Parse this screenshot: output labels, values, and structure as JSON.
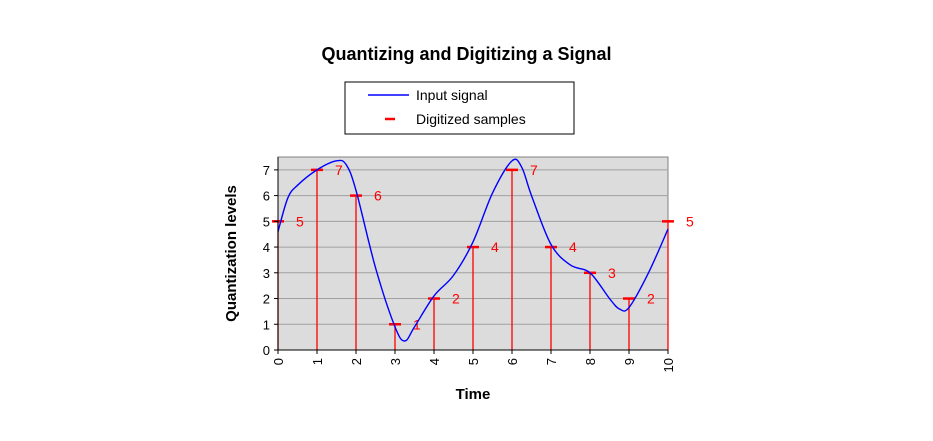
{
  "chart_data": {
    "type": "line",
    "title": "Quantizing and Digitizing a Signal",
    "xlabel": "Time",
    "ylabel": "Quantization levels",
    "xlim": [
      0,
      10
    ],
    "ylim": [
      0,
      7.5
    ],
    "x_ticks": [
      "0",
      "1",
      "2",
      "3",
      "4",
      "5",
      "6",
      "7",
      "8",
      "9",
      "10"
    ],
    "y_ticks": [
      "0",
      "1",
      "2",
      "3",
      "4",
      "5",
      "6",
      "7"
    ],
    "grid": true,
    "legend": {
      "position": "top"
    },
    "series": [
      {
        "name": "Input signal",
        "kind": "line",
        "color": "#0000ff",
        "x": [
          0,
          0.25,
          0.5,
          1.0,
          1.5,
          1.75,
          2.0,
          2.5,
          3.0,
          3.25,
          3.5,
          4.0,
          4.5,
          5.0,
          5.5,
          6.0,
          6.25,
          6.5,
          7.0,
          7.5,
          8.0,
          8.5,
          8.75,
          9.0,
          9.5,
          10.0
        ],
        "y": [
          4.6,
          5.9,
          6.4,
          7.0,
          7.35,
          7.2,
          6.2,
          3.2,
          0.9,
          0.35,
          0.9,
          2.1,
          2.9,
          4.2,
          6.1,
          7.35,
          7.1,
          6.0,
          4.1,
          3.3,
          3.0,
          2.0,
          1.6,
          1.65,
          3.0,
          4.7
        ]
      },
      {
        "name": "Digitized samples",
        "kind": "samples",
        "color": "#ff0000",
        "x": [
          0,
          1,
          2,
          3,
          4,
          5,
          6,
          7,
          8,
          9,
          10
        ],
        "y": [
          5,
          7,
          6,
          1,
          2,
          4,
          7,
          4,
          3,
          2,
          5
        ],
        "labels": [
          "5",
          "7",
          "6",
          "1",
          "2",
          "4",
          "7",
          "4",
          "3",
          "2",
          "5"
        ]
      }
    ]
  }
}
